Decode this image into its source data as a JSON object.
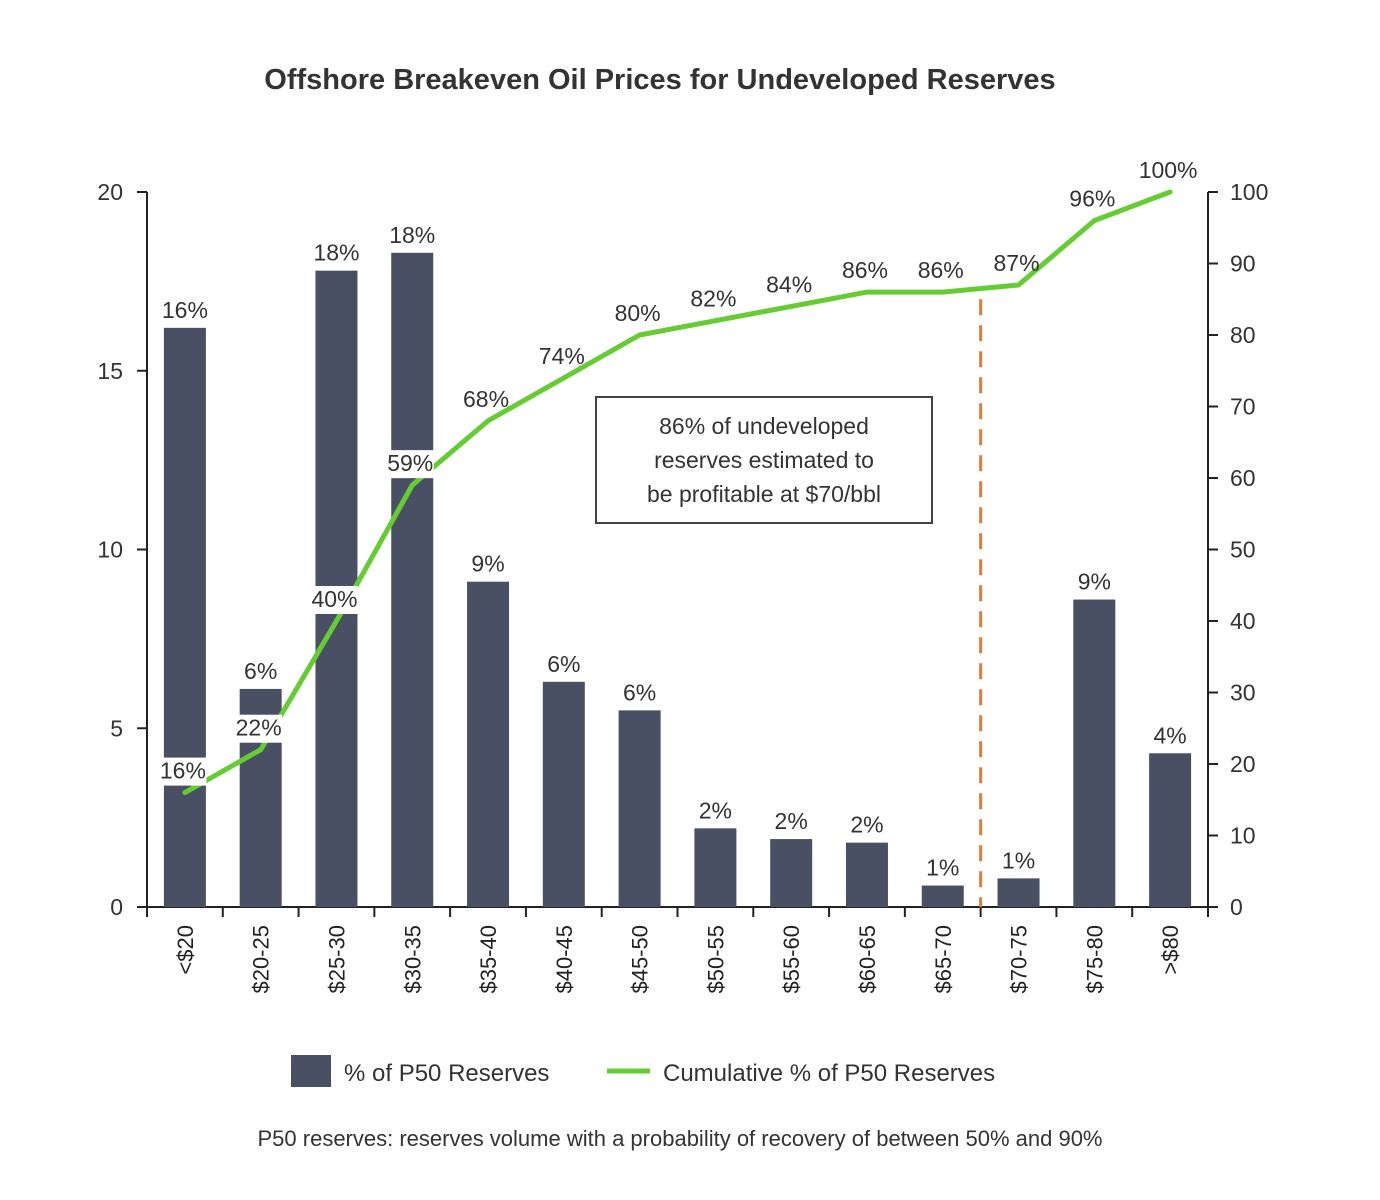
{
  "chart_data": {
    "type": "bar",
    "title": "Offshore Breakeven Oil Prices for Undeveloped Reserves",
    "categories": [
      "<$20",
      "$20-25",
      "$25-30",
      "$30-35",
      "$35-40",
      "$40-45",
      "$45-50",
      "$50-55",
      "$55-60",
      "$60-65",
      "$65-70",
      "$70-75",
      "$75-80",
      ">$80"
    ],
    "series": [
      {
        "name": "% of P50 Reserves",
        "type": "bar",
        "axis": "left",
        "color": "#4a5063",
        "values": [
          16.2,
          6.1,
          17.8,
          18.3,
          9.1,
          6.3,
          5.5,
          2.2,
          1.9,
          1.8,
          0.6,
          0.8,
          8.6,
          4.3
        ],
        "labels": [
          "16%",
          "6%",
          "18%",
          "18%",
          "9%",
          "6%",
          "6%",
          "2%",
          "2%",
          "2%",
          "1%",
          "1%",
          "9%",
          "4%"
        ]
      },
      {
        "name": "Cumulative % of P50 Reserves",
        "type": "line",
        "axis": "right",
        "color": "#66cc33",
        "values": [
          16,
          22,
          40,
          59,
          68,
          74,
          80,
          82,
          84,
          86,
          86,
          87,
          96,
          100
        ],
        "labels": [
          "16%",
          "22%",
          "40%",
          "59%",
          "68%",
          "74%",
          "80%",
          "82%",
          "84%",
          "86%",
          "86%",
          "87%",
          "96%",
          "100%"
        ]
      }
    ],
    "y_left": {
      "min": 0,
      "max": 20,
      "ticks": [
        0,
        5,
        10,
        15,
        20
      ]
    },
    "y_right": {
      "min": 0,
      "max": 100,
      "ticks": [
        0,
        10,
        20,
        30,
        40,
        50,
        60,
        70,
        80,
        90,
        100
      ]
    },
    "threshold_line": {
      "between_categories": [
        "$65-70",
        "$70-75"
      ],
      "color": "#e07b39",
      "style": "dashed"
    },
    "annotation": {
      "lines": [
        "86% of undeveloped",
        "reserves estimated to",
        "be profitable at $70/bbl"
      ]
    },
    "legend": {
      "position": "bottom",
      "items": [
        "% of P50 Reserves",
        "Cumulative % of P50 Reserves"
      ]
    },
    "footnote": "P50 reserves: reserves volume with a probability of recovery of between 50% and 90%"
  }
}
